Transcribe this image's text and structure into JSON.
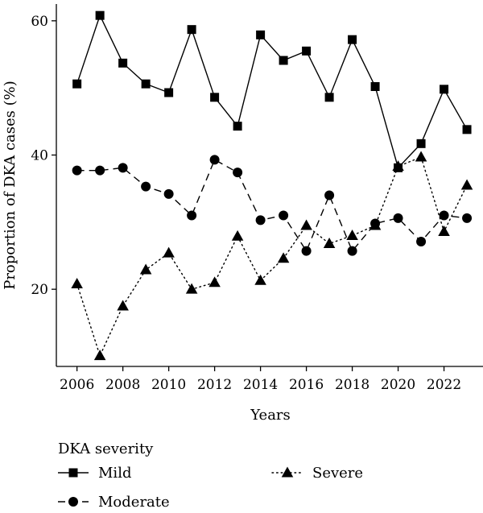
{
  "chart_data": {
    "type": "line",
    "title": "",
    "xlabel": "Years",
    "ylabel": "Proportion of DKA cases (%)",
    "x": [
      2006,
      2007,
      2008,
      2009,
      2010,
      2011,
      2012,
      2013,
      2014,
      2015,
      2016,
      2017,
      2018,
      2019,
      2020,
      2021,
      2022,
      2023
    ],
    "x_ticks": [
      "2006",
      "2008",
      "2010",
      "2012",
      "2014",
      "2016",
      "2018",
      "2020",
      "2022"
    ],
    "y_ticks": [
      "20",
      "40",
      "60"
    ],
    "ylim": [
      8.5,
      62.5
    ],
    "xlim": [
      2005.1,
      2023.7
    ],
    "grid": false,
    "legend": {
      "title": "DKA severity",
      "placement": "bottom"
    },
    "series": [
      {
        "name": "Mild",
        "line_style": "solid",
        "marker": "square",
        "values": [
          50.6,
          60.8,
          53.7,
          50.6,
          49.3,
          58.7,
          48.6,
          44.3,
          57.9,
          54.1,
          55.5,
          48.6,
          57.2,
          50.2,
          38.1,
          41.7,
          49.8,
          43.8
        ]
      },
      {
        "name": "Moderate",
        "line_style": "dashed",
        "marker": "circle",
        "values": [
          37.7,
          37.7,
          38.1,
          35.3,
          34.2,
          31.0,
          39.3,
          37.4,
          30.3,
          31.0,
          25.7,
          34.0,
          25.7,
          29.8,
          30.6,
          27.1,
          31.0,
          30.6
        ]
      },
      {
        "name": "Severe",
        "line_style": "dotted",
        "marker": "triangle",
        "values": [
          20.8,
          10.1,
          17.5,
          22.9,
          25.4,
          20.0,
          21.0,
          27.9,
          21.3,
          24.6,
          29.5,
          26.8,
          28.0,
          29.5,
          38.3,
          39.7,
          28.6,
          35.5
        ]
      }
    ]
  }
}
